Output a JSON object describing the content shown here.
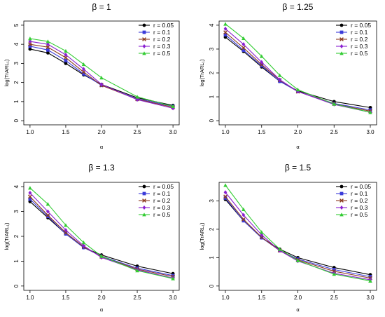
{
  "figure": {
    "series_styles": [
      {
        "name": "r = 0.05",
        "color": "#000000",
        "marker": "circle"
      },
      {
        "name": "r = 0.1",
        "color": "#3b3bd9",
        "marker": "square"
      },
      {
        "name": "r = 0.2",
        "color": "#8b3a1e",
        "marker": "x"
      },
      {
        "name": "r = 0.3",
        "color": "#8a20d0",
        "marker": "diamond"
      },
      {
        "name": "r = 0.5",
        "color": "#33cc33",
        "marker": "triangle"
      }
    ]
  },
  "chart_data": [
    {
      "type": "line",
      "title": "β = 1",
      "xlabel": "α",
      "ylabel": "log(TrARL₁)",
      "x": [
        1.0,
        1.25,
        1.5,
        1.75,
        2.0,
        2.5,
        3.0
      ],
      "xticks": [
        "1.0",
        "1.5",
        "2.0",
        "2.5",
        "3.0"
      ],
      "xlim": [
        1.0,
        3.0
      ],
      "ylim": [
        0,
        5
      ],
      "yticks": [
        "0",
        "1",
        "2",
        "3",
        "4",
        "5"
      ],
      "grid": false,
      "legend_position": "top-right",
      "series": [
        {
          "name": "r = 0.05",
          "values": [
            3.75,
            3.55,
            3.0,
            2.4,
            1.9,
            1.2,
            0.8
          ]
        },
        {
          "name": "r = 0.1",
          "values": [
            3.9,
            3.7,
            3.15,
            2.45,
            1.85,
            1.15,
            0.75
          ]
        },
        {
          "name": "r = 0.2",
          "values": [
            4.0,
            3.85,
            3.3,
            2.55,
            1.85,
            1.12,
            0.7
          ]
        },
        {
          "name": "r = 0.3",
          "values": [
            4.15,
            4.0,
            3.45,
            2.7,
            1.9,
            1.1,
            0.65
          ]
        },
        {
          "name": "r = 0.5",
          "values": [
            4.3,
            4.15,
            3.65,
            2.95,
            2.25,
            1.25,
            0.75
          ]
        }
      ]
    },
    {
      "type": "line",
      "title": "β = 1.25",
      "xlabel": "α",
      "ylabel": "log(TrARL₁)",
      "x": [
        1.0,
        1.25,
        1.5,
        1.75,
        2.0,
        2.5,
        3.0
      ],
      "xticks": [
        "1.0",
        "1.5",
        "2.0",
        "2.5",
        "3.0"
      ],
      "xlim": [
        1.0,
        3.0
      ],
      "ylim": [
        0,
        4
      ],
      "yticks": [
        "0",
        "1",
        "2",
        "3",
        "4"
      ],
      "grid": false,
      "legend_position": "top-right",
      "series": [
        {
          "name": "r = 0.05",
          "values": [
            3.5,
            2.9,
            2.25,
            1.65,
            1.25,
            0.8,
            0.55
          ]
        },
        {
          "name": "r = 0.1",
          "values": [
            3.6,
            2.95,
            2.3,
            1.65,
            1.22,
            0.72,
            0.45
          ]
        },
        {
          "name": "r = 0.2",
          "values": [
            3.7,
            3.05,
            2.35,
            1.7,
            1.22,
            0.7,
            0.4
          ]
        },
        {
          "name": "r = 0.3",
          "values": [
            3.85,
            3.2,
            2.45,
            1.72,
            1.22,
            0.68,
            0.35
          ]
        },
        {
          "name": "r = 0.5",
          "values": [
            4.05,
            3.45,
            2.7,
            1.9,
            1.3,
            0.7,
            0.35
          ]
        }
      ]
    },
    {
      "type": "line",
      "title": "β = 1.3",
      "xlabel": "α",
      "ylabel": "log(TrARL₁)",
      "x": [
        1.0,
        1.25,
        1.5,
        1.75,
        2.0,
        2.5,
        3.0
      ],
      "xticks": [
        "1.0",
        "1.5",
        "2.0",
        "2.5",
        "3.0"
      ],
      "xlim": [
        1.0,
        3.0
      ],
      "ylim": [
        0,
        4
      ],
      "yticks": [
        "0",
        "1",
        "2",
        "3",
        "4"
      ],
      "grid": false,
      "legend_position": "top-right",
      "series": [
        {
          "name": "r = 0.05",
          "values": [
            3.4,
            2.75,
            2.1,
            1.55,
            1.25,
            0.8,
            0.5
          ]
        },
        {
          "name": "r = 0.1",
          "values": [
            3.5,
            2.8,
            2.1,
            1.55,
            1.2,
            0.72,
            0.42
          ]
        },
        {
          "name": "r = 0.2",
          "values": [
            3.6,
            2.85,
            2.15,
            1.58,
            1.18,
            0.68,
            0.38
          ]
        },
        {
          "name": "r = 0.3",
          "values": [
            3.75,
            3.0,
            2.25,
            1.62,
            1.15,
            0.65,
            0.32
          ]
        },
        {
          "name": "r = 0.5",
          "values": [
            3.95,
            3.3,
            2.45,
            1.75,
            1.2,
            0.62,
            0.3
          ]
        }
      ]
    },
    {
      "type": "line",
      "title": "β = 1.5",
      "xlabel": "α",
      "ylabel": "log(TrARL₁)",
      "x": [
        1.0,
        1.25,
        1.5,
        1.75,
        2.0,
        2.5,
        3.0
      ],
      "xticks": [
        "1.0",
        "1.5",
        "2.0",
        "2.5",
        "3.0"
      ],
      "xlim": [
        1.0,
        3.0
      ],
      "ylim": [
        0,
        3.5
      ],
      "yticks": [
        "0",
        "1",
        "2",
        "3"
      ],
      "grid": false,
      "legend_position": "top-right",
      "series": [
        {
          "name": "r = 0.05",
          "values": [
            3.05,
            2.3,
            1.7,
            1.3,
            1.0,
            0.65,
            0.4
          ]
        },
        {
          "name": "r = 0.1",
          "values": [
            3.1,
            2.3,
            1.7,
            1.25,
            0.95,
            0.58,
            0.33
          ]
        },
        {
          "name": "r = 0.2",
          "values": [
            3.15,
            2.35,
            1.72,
            1.25,
            0.92,
            0.52,
            0.28
          ]
        },
        {
          "name": "r = 0.3",
          "values": [
            3.3,
            2.5,
            1.8,
            1.25,
            0.88,
            0.45,
            0.22
          ]
        },
        {
          "name": "r = 0.5",
          "values": [
            3.55,
            2.7,
            1.9,
            1.3,
            0.9,
            0.42,
            0.18
          ]
        }
      ]
    }
  ]
}
